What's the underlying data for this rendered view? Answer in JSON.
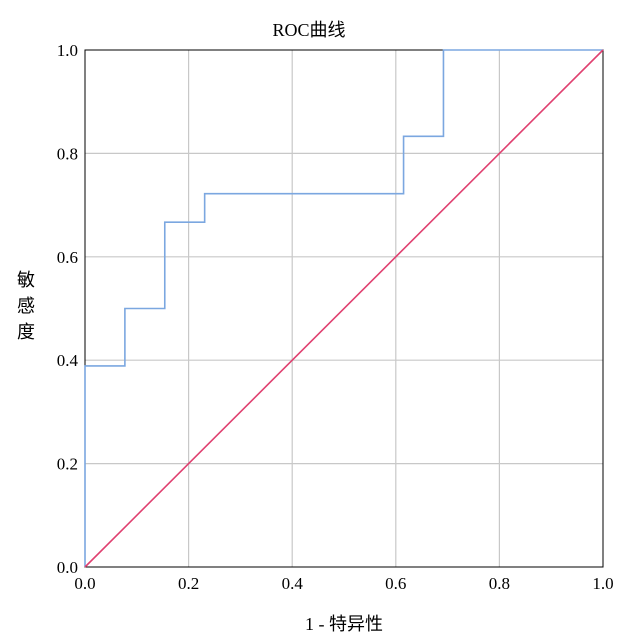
{
  "chart_data": {
    "type": "line",
    "title": "ROC曲线",
    "xlabel": "1 - 特异性",
    "ylabel": "敏感度",
    "xlim": [
      0,
      1
    ],
    "ylim": [
      0,
      1
    ],
    "x_ticks": [
      "0.0",
      "0.2",
      "0.4",
      "0.6",
      "0.8",
      "1.0"
    ],
    "y_ticks": [
      "0.0",
      "0.2",
      "0.4",
      "0.6",
      "0.8",
      "1.0"
    ],
    "grid": true,
    "series": [
      {
        "color": "#7BA7E0",
        "x": [
          0,
          0,
          0.077,
          0.077,
          0.154,
          0.154,
          0.231,
          0.231,
          0.615,
          0.615,
          0.692,
          0.692,
          1.0
        ],
        "y": [
          0,
          0.389,
          0.389,
          0.5,
          0.5,
          0.667,
          0.667,
          0.722,
          0.722,
          0.833,
          0.833,
          1.0,
          1.0
        ]
      },
      {
        "color": "#E04070",
        "x": [
          0,
          1
        ],
        "y": [
          0,
          1
        ]
      }
    ]
  }
}
